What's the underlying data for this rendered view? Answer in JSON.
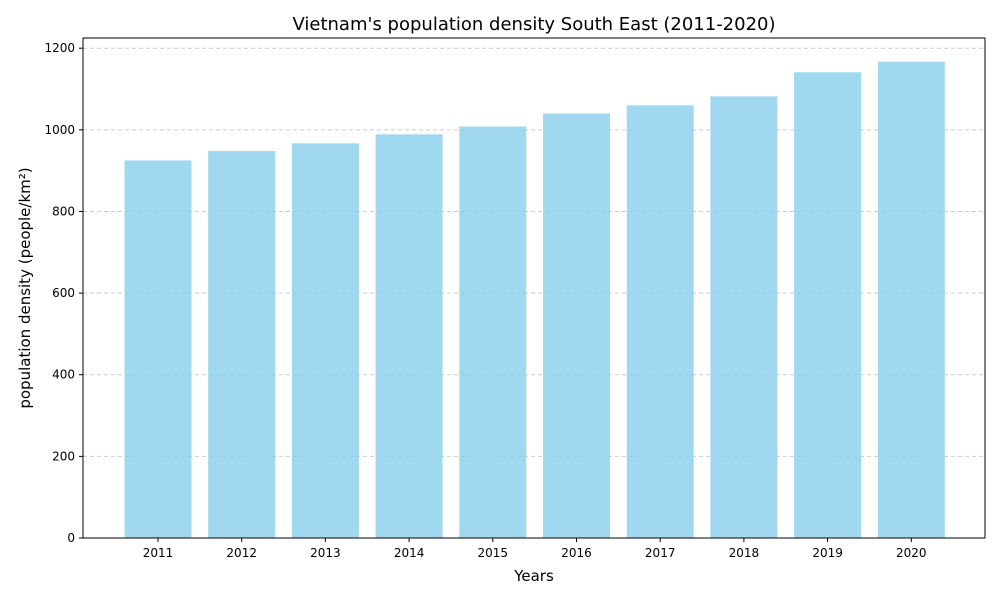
{
  "chart_data": {
    "type": "bar",
    "title": "Vietnam's population density South East (2011-2020)",
    "xlabel": "Years",
    "ylabel": "population density (people/km²)",
    "categories": [
      "2011",
      "2012",
      "2013",
      "2014",
      "2015",
      "2016",
      "2017",
      "2018",
      "2019",
      "2020"
    ],
    "values": [
      925,
      948,
      967,
      989,
      1008,
      1040,
      1060,
      1082,
      1141,
      1167
    ],
    "ylim": [
      0,
      1225
    ],
    "yticks": [
      0,
      200,
      400,
      600,
      800,
      1000,
      1200
    ],
    "grid": "y-dashed",
    "bar_color": "#87CEEB"
  }
}
